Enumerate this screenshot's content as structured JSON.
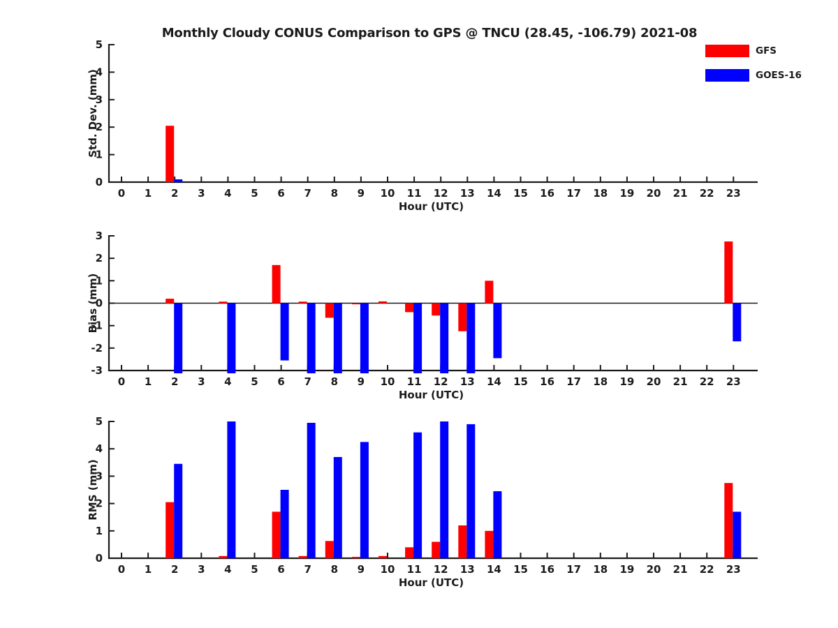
{
  "title": "Monthly Cloudy CONUS Comparison to GPS @ TNCU (28.45, -106.79) 2021-08",
  "legend": {
    "items": [
      {
        "label": "GFS",
        "color": "#ff0000"
      },
      {
        "label": "GOES-16",
        "color": "#0000ff"
      }
    ]
  },
  "axis": {
    "xlabel": "Hour (UTC)",
    "hours": [
      0,
      1,
      2,
      3,
      4,
      5,
      6,
      7,
      8,
      9,
      10,
      11,
      12,
      13,
      14,
      15,
      16,
      17,
      18,
      19,
      20,
      21,
      22,
      23
    ]
  },
  "chart_data": [
    {
      "id": "stddev",
      "type": "bar",
      "ylabel": "Std. Dev. (mm)",
      "xlabel": "Hour (UTC)",
      "ylim": [
        0,
        5
      ],
      "yticks": [
        0,
        1,
        2,
        3,
        4,
        5
      ],
      "zero_line": false,
      "series": [
        {
          "name": "GFS",
          "color": "#ff0000",
          "values": [
            0,
            0,
            2.05,
            0,
            0,
            0,
            0,
            0,
            0,
            0,
            0,
            0,
            0,
            0,
            0,
            0,
            0,
            0,
            0,
            0,
            0,
            0,
            0,
            0
          ]
        },
        {
          "name": "GOES-16",
          "color": "#0000ff",
          "values": [
            0,
            0,
            0.1,
            0,
            0,
            0,
            0,
            0,
            0,
            0,
            0,
            0,
            0,
            0,
            0,
            0,
            0,
            0,
            0,
            0,
            0,
            0,
            0,
            0
          ]
        }
      ]
    },
    {
      "id": "bias",
      "type": "bar",
      "ylabel": "Bias (mm)",
      "xlabel": "Hour (UTC)",
      "ylim": [
        -3,
        3
      ],
      "yticks": [
        -3,
        -2,
        -1,
        0,
        1,
        2,
        3
      ],
      "zero_line": true,
      "series": [
        {
          "name": "GFS",
          "color": "#ff0000",
          "values": [
            0,
            0,
            0.2,
            0,
            0.07,
            0,
            1.7,
            0.07,
            -0.65,
            -0.05,
            0.08,
            -0.4,
            -0.55,
            -1.25,
            1.0,
            0,
            0,
            0,
            0,
            0,
            0,
            0,
            0,
            2.75
          ]
        },
        {
          "name": "GOES-16",
          "color": "#0000ff",
          "values": [
            0,
            0,
            -3,
            0,
            -3,
            0,
            -2.55,
            -3,
            -3,
            -3,
            0,
            -3,
            -3,
            -3,
            -2.45,
            0,
            0,
            0,
            0,
            0,
            0,
            0,
            0,
            -1.7
          ]
        }
      ]
    },
    {
      "id": "rms",
      "type": "bar",
      "ylabel": "RMS (mm)",
      "xlabel": "Hour (UTC)",
      "ylim": [
        0,
        5
      ],
      "yticks": [
        0,
        1,
        2,
        3,
        4,
        5
      ],
      "zero_line": false,
      "series": [
        {
          "name": "GFS",
          "color": "#ff0000",
          "values": [
            0,
            0,
            2.05,
            0,
            0.08,
            0,
            1.7,
            0.08,
            0.63,
            0.05,
            0.08,
            0.4,
            0.6,
            1.2,
            1.0,
            0,
            0,
            0,
            0,
            0,
            0,
            0,
            0,
            2.75
          ]
        },
        {
          "name": "GOES-16",
          "color": "#0000ff",
          "values": [
            0,
            0,
            3.45,
            0,
            5.0,
            0,
            2.5,
            4.95,
            3.7,
            4.25,
            0,
            4.6,
            5.0,
            4.9,
            2.45,
            0,
            0,
            0,
            0,
            0,
            0,
            0,
            0,
            1.7
          ]
        }
      ]
    }
  ]
}
